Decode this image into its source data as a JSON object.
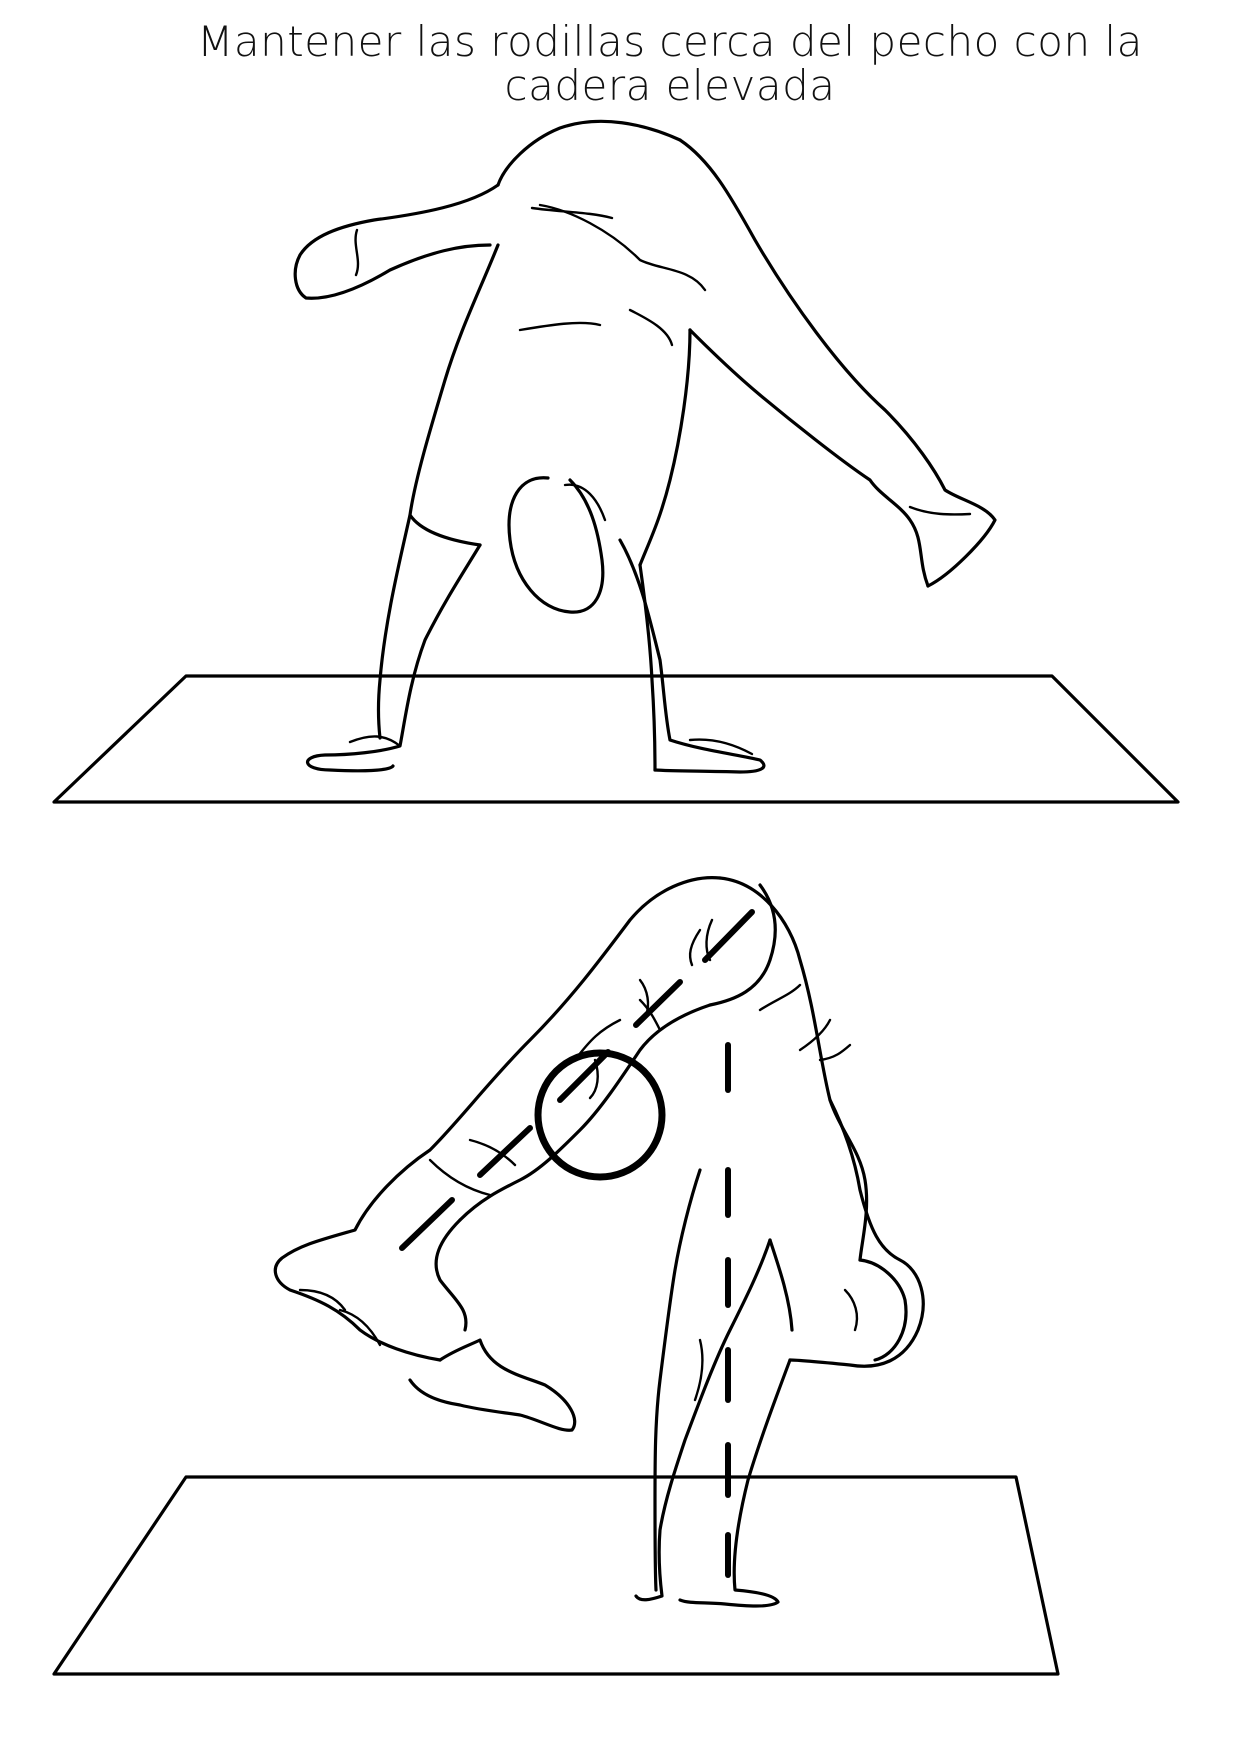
{
  "title": {
    "line1": "Mantener las rodillas cerca del pecho con la",
    "line2": "cadera elevada"
  },
  "figures": [
    {
      "name": "handstand-straddle",
      "description_icon": "person-handstand-icon"
    },
    {
      "name": "handstand-tuck-hips-high",
      "description_icon": "person-tuck-icon"
    }
  ],
  "colors": {
    "line": "#000000",
    "background": "#ffffff"
  }
}
